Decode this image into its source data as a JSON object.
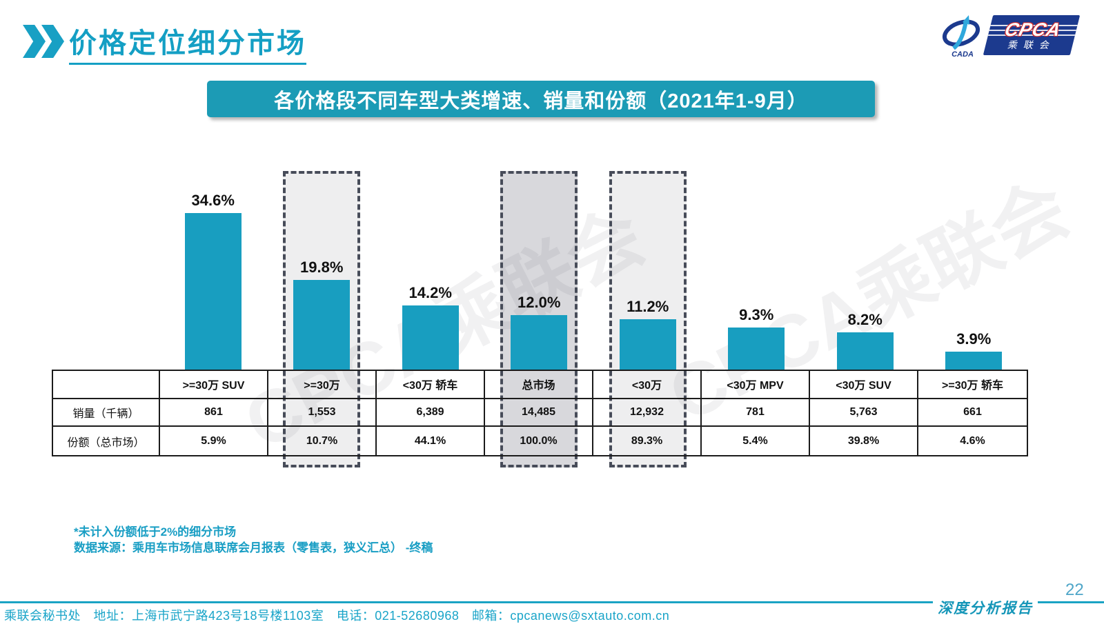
{
  "header": {
    "title": "价格定位细分市场",
    "logo": {
      "cada": "CADA",
      "cpca": "CPCA",
      "subtitle": "乘联会"
    }
  },
  "banner": {
    "title": "各价格段不同车型大类增速、销量和份额（2021年1-9月）"
  },
  "watermark": "CPCA乘联会",
  "chart_data": {
    "type": "bar",
    "title": "各价格段不同车型大类增速、销量和份额（2021年1-9月）",
    "categories": [
      ">=30万 SUV",
      ">=30万",
      "<30万 轿车",
      "总市场",
      "<30万",
      "<30万 MPV",
      "<30万 SUV",
      ">=30万 轿车"
    ],
    "values": [
      34.6,
      19.8,
      14.2,
      12.0,
      11.2,
      9.3,
      8.2,
      3.9
    ],
    "value_labels": [
      "34.6%",
      "19.8%",
      "14.2%",
      "12.0%",
      "11.2%",
      "9.3%",
      "8.2%",
      "3.9%"
    ],
    "bar_color": "#189EC0",
    "ylabel": "",
    "xlabel": "",
    "ylim": [
      0,
      40
    ],
    "grid": false,
    "legend": false,
    "highlights": [
      {
        "index": 1,
        "tone": "light"
      },
      {
        "index": 3,
        "tone": "dark"
      },
      {
        "index": 4,
        "tone": "light"
      }
    ],
    "table": {
      "row_labels": [
        "销量（千辆）",
        "份额（总市场）"
      ],
      "rows": [
        [
          "861",
          "1,553",
          "6,389",
          "14,485",
          "12,932",
          "781",
          "5,763",
          "661"
        ],
        [
          "5.9%",
          "10.7%",
          "44.1%",
          "100.0%",
          "89.3%",
          "5.4%",
          "39.8%",
          "4.6%"
        ]
      ]
    }
  },
  "footnotes": [
    "*未计入份额低于2%的细分市场",
    "数据来源：乘用车市场信息联席会月报表（零售表，狭义汇总） -终稿"
  ],
  "footer": {
    "contact": "乘联会秘书处　地址：上海市武宁路423号18号楼1103室　电话：021-52680968　邮箱：cpcanews@sxtauto.com.cn",
    "report_label": "深度分析报告",
    "page_number": "22"
  },
  "colors": {
    "accent_teal": "#149FC4",
    "banner_bg": "#1C9BB5",
    "bar": "#189EC0",
    "dash_border": "#474C59",
    "logo_blue": "#1C3A8E",
    "logo_red": "#D42A2A"
  }
}
